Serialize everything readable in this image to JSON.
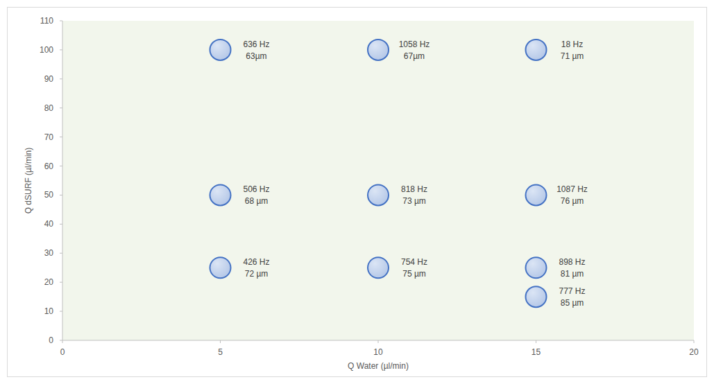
{
  "chart_data": {
    "type": "scatter",
    "x_label": "Q Water (µl/min)",
    "y_label": "Q dSURF (µl/min)",
    "xlim": [
      0,
      20
    ],
    "xticks": [
      0,
      5,
      10,
      15,
      20
    ],
    "ylim": [
      0,
      110
    ],
    "yticks": [
      0,
      10,
      20,
      30,
      40,
      50,
      60,
      70,
      80,
      90,
      100,
      110
    ],
    "grid": false,
    "series": [
      {
        "color": "#b4c7e7",
        "marker": "circle",
        "x": [
          5,
          10,
          15,
          5,
          10,
          15,
          5,
          10,
          15,
          15
        ],
        "values": [
          100,
          100,
          100,
          50,
          50,
          50,
          25,
          25,
          25,
          15
        ],
        "frequency": [
          636,
          1058,
          18,
          506,
          818,
          1087,
          426,
          754,
          898,
          777
        ],
        "frequency_labels": [
          "636 Hz",
          "1058 Hz",
          "18 Hz",
          "506 Hz",
          "818 Hz",
          "1087 Hz",
          "426 Hz",
          "754 Hz",
          "898 Hz",
          "777 Hz"
        ],
        "diameter": [
          63,
          67,
          71,
          68,
          73,
          76,
          72,
          75,
          81,
          85
        ],
        "diameter_labels": [
          "63µm",
          "67µm",
          "71 µm",
          "68 µm",
          "73 µm",
          "76 µm",
          "72 µm",
          "75 µm",
          "81 µm",
          "85 µm"
        ]
      }
    ]
  }
}
